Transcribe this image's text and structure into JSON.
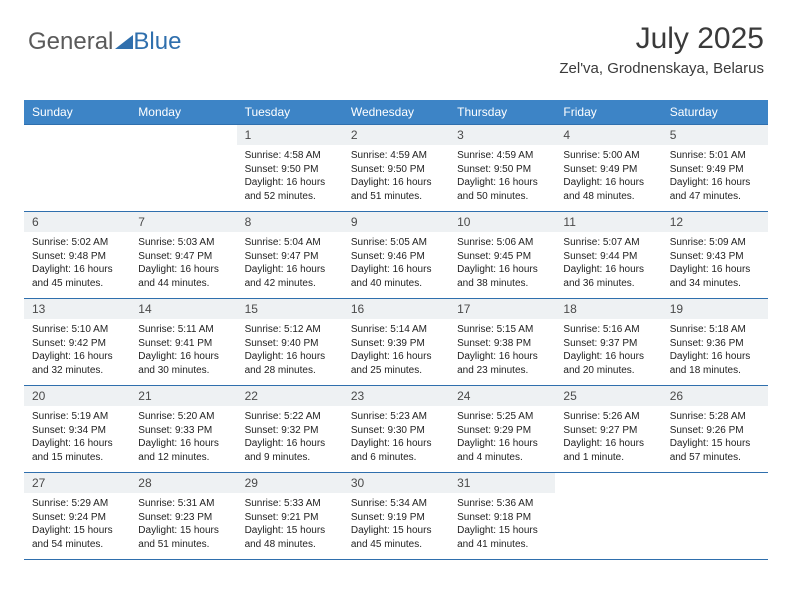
{
  "logo": {
    "part1": "General",
    "part2": "Blue"
  },
  "header": {
    "title": "July 2025",
    "location": "Zel'va, Grodnenskaya, Belarus"
  },
  "colors": {
    "brand_blue": "#2f6fad",
    "header_blue": "#3d84c6",
    "daynum_bg": "#eef1f3",
    "text_gray": "#3a3a3a",
    "background": "#ffffff"
  },
  "day_labels": [
    "Sunday",
    "Monday",
    "Tuesday",
    "Wednesday",
    "Thursday",
    "Friday",
    "Saturday"
  ],
  "weeks": [
    [
      {
        "empty": true
      },
      {
        "empty": true
      },
      {
        "num": "1",
        "sunrise": "Sunrise: 4:58 AM",
        "sunset": "Sunset: 9:50 PM",
        "daylight": "Daylight: 16 hours and 52 minutes."
      },
      {
        "num": "2",
        "sunrise": "Sunrise: 4:59 AM",
        "sunset": "Sunset: 9:50 PM",
        "daylight": "Daylight: 16 hours and 51 minutes."
      },
      {
        "num": "3",
        "sunrise": "Sunrise: 4:59 AM",
        "sunset": "Sunset: 9:50 PM",
        "daylight": "Daylight: 16 hours and 50 minutes."
      },
      {
        "num": "4",
        "sunrise": "Sunrise: 5:00 AM",
        "sunset": "Sunset: 9:49 PM",
        "daylight": "Daylight: 16 hours and 48 minutes."
      },
      {
        "num": "5",
        "sunrise": "Sunrise: 5:01 AM",
        "sunset": "Sunset: 9:49 PM",
        "daylight": "Daylight: 16 hours and 47 minutes."
      }
    ],
    [
      {
        "num": "6",
        "sunrise": "Sunrise: 5:02 AM",
        "sunset": "Sunset: 9:48 PM",
        "daylight": "Daylight: 16 hours and 45 minutes."
      },
      {
        "num": "7",
        "sunrise": "Sunrise: 5:03 AM",
        "sunset": "Sunset: 9:47 PM",
        "daylight": "Daylight: 16 hours and 44 minutes."
      },
      {
        "num": "8",
        "sunrise": "Sunrise: 5:04 AM",
        "sunset": "Sunset: 9:47 PM",
        "daylight": "Daylight: 16 hours and 42 minutes."
      },
      {
        "num": "9",
        "sunrise": "Sunrise: 5:05 AM",
        "sunset": "Sunset: 9:46 PM",
        "daylight": "Daylight: 16 hours and 40 minutes."
      },
      {
        "num": "10",
        "sunrise": "Sunrise: 5:06 AM",
        "sunset": "Sunset: 9:45 PM",
        "daylight": "Daylight: 16 hours and 38 minutes."
      },
      {
        "num": "11",
        "sunrise": "Sunrise: 5:07 AM",
        "sunset": "Sunset: 9:44 PM",
        "daylight": "Daylight: 16 hours and 36 minutes."
      },
      {
        "num": "12",
        "sunrise": "Sunrise: 5:09 AM",
        "sunset": "Sunset: 9:43 PM",
        "daylight": "Daylight: 16 hours and 34 minutes."
      }
    ],
    [
      {
        "num": "13",
        "sunrise": "Sunrise: 5:10 AM",
        "sunset": "Sunset: 9:42 PM",
        "daylight": "Daylight: 16 hours and 32 minutes."
      },
      {
        "num": "14",
        "sunrise": "Sunrise: 5:11 AM",
        "sunset": "Sunset: 9:41 PM",
        "daylight": "Daylight: 16 hours and 30 minutes."
      },
      {
        "num": "15",
        "sunrise": "Sunrise: 5:12 AM",
        "sunset": "Sunset: 9:40 PM",
        "daylight": "Daylight: 16 hours and 28 minutes."
      },
      {
        "num": "16",
        "sunrise": "Sunrise: 5:14 AM",
        "sunset": "Sunset: 9:39 PM",
        "daylight": "Daylight: 16 hours and 25 minutes."
      },
      {
        "num": "17",
        "sunrise": "Sunrise: 5:15 AM",
        "sunset": "Sunset: 9:38 PM",
        "daylight": "Daylight: 16 hours and 23 minutes."
      },
      {
        "num": "18",
        "sunrise": "Sunrise: 5:16 AM",
        "sunset": "Sunset: 9:37 PM",
        "daylight": "Daylight: 16 hours and 20 minutes."
      },
      {
        "num": "19",
        "sunrise": "Sunrise: 5:18 AM",
        "sunset": "Sunset: 9:36 PM",
        "daylight": "Daylight: 16 hours and 18 minutes."
      }
    ],
    [
      {
        "num": "20",
        "sunrise": "Sunrise: 5:19 AM",
        "sunset": "Sunset: 9:34 PM",
        "daylight": "Daylight: 16 hours and 15 minutes."
      },
      {
        "num": "21",
        "sunrise": "Sunrise: 5:20 AM",
        "sunset": "Sunset: 9:33 PM",
        "daylight": "Daylight: 16 hours and 12 minutes."
      },
      {
        "num": "22",
        "sunrise": "Sunrise: 5:22 AM",
        "sunset": "Sunset: 9:32 PM",
        "daylight": "Daylight: 16 hours and 9 minutes."
      },
      {
        "num": "23",
        "sunrise": "Sunrise: 5:23 AM",
        "sunset": "Sunset: 9:30 PM",
        "daylight": "Daylight: 16 hours and 6 minutes."
      },
      {
        "num": "24",
        "sunrise": "Sunrise: 5:25 AM",
        "sunset": "Sunset: 9:29 PM",
        "daylight": "Daylight: 16 hours and 4 minutes."
      },
      {
        "num": "25",
        "sunrise": "Sunrise: 5:26 AM",
        "sunset": "Sunset: 9:27 PM",
        "daylight": "Daylight: 16 hours and 1 minute."
      },
      {
        "num": "26",
        "sunrise": "Sunrise: 5:28 AM",
        "sunset": "Sunset: 9:26 PM",
        "daylight": "Daylight: 15 hours and 57 minutes."
      }
    ],
    [
      {
        "num": "27",
        "sunrise": "Sunrise: 5:29 AM",
        "sunset": "Sunset: 9:24 PM",
        "daylight": "Daylight: 15 hours and 54 minutes."
      },
      {
        "num": "28",
        "sunrise": "Sunrise: 5:31 AM",
        "sunset": "Sunset: 9:23 PM",
        "daylight": "Daylight: 15 hours and 51 minutes."
      },
      {
        "num": "29",
        "sunrise": "Sunrise: 5:33 AM",
        "sunset": "Sunset: 9:21 PM",
        "daylight": "Daylight: 15 hours and 48 minutes."
      },
      {
        "num": "30",
        "sunrise": "Sunrise: 5:34 AM",
        "sunset": "Sunset: 9:19 PM",
        "daylight": "Daylight: 15 hours and 45 minutes."
      },
      {
        "num": "31",
        "sunrise": "Sunrise: 5:36 AM",
        "sunset": "Sunset: 9:18 PM",
        "daylight": "Daylight: 15 hours and 41 minutes."
      },
      {
        "empty": true
      },
      {
        "empty": true
      }
    ]
  ]
}
